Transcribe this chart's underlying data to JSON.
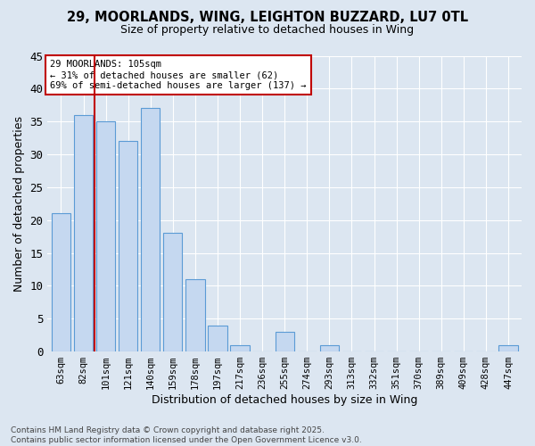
{
  "title": "29, MOORLANDS, WING, LEIGHTON BUZZARD, LU7 0TL",
  "subtitle": "Size of property relative to detached houses in Wing",
  "xlabel": "Distribution of detached houses by size in Wing",
  "ylabel": "Number of detached properties",
  "categories": [
    "63sqm",
    "82sqm",
    "101sqm",
    "121sqm",
    "140sqm",
    "159sqm",
    "178sqm",
    "197sqm",
    "217sqm",
    "236sqm",
    "255sqm",
    "274sqm",
    "293sqm",
    "313sqm",
    "332sqm",
    "351sqm",
    "370sqm",
    "389sqm",
    "409sqm",
    "428sqm",
    "447sqm"
  ],
  "values": [
    21,
    36,
    35,
    32,
    37,
    18,
    11,
    4,
    1,
    0,
    3,
    0,
    1,
    0,
    0,
    0,
    0,
    0,
    0,
    0,
    1
  ],
  "bar_color": "#c5d8f0",
  "bar_edge_color": "#5b9bd5",
  "background_color": "#dce6f1",
  "grid_color": "#ffffff",
  "vline_x": 1.5,
  "vline_color": "#c00000",
  "annotation_text": "29 MOORLANDS: 105sqm\n← 31% of detached houses are smaller (62)\n69% of semi-detached houses are larger (137) →",
  "annotation_box_color": "#ffffff",
  "annotation_box_edge": "#c00000",
  "footer": "Contains HM Land Registry data © Crown copyright and database right 2025.\nContains public sector information licensed under the Open Government Licence v3.0.",
  "ylim": [
    0,
    45
  ],
  "yticks": [
    0,
    5,
    10,
    15,
    20,
    25,
    30,
    35,
    40,
    45
  ]
}
